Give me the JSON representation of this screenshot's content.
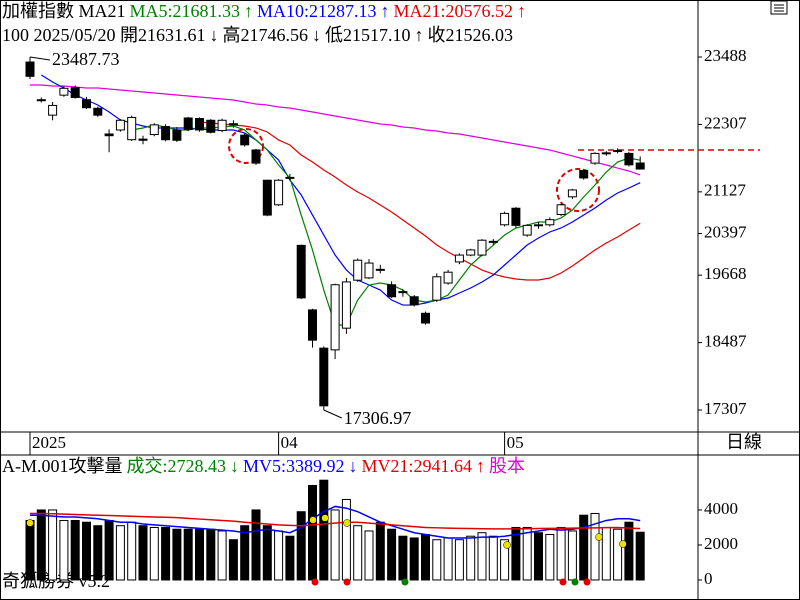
{
  "header": {
    "line1": [
      {
        "text": "加權指數 MA21",
        "color": "#000000"
      },
      {
        "text": "MA5:21681.33",
        "color": "#008000"
      },
      {
        "text": "↑",
        "color": "#008000"
      },
      {
        "text": "MA10:21287.13",
        "color": "#0000ff"
      },
      {
        "text": "↑",
        "color": "#0000ff"
      },
      {
        "text": "MA21:20576.52",
        "color": "#e00000"
      },
      {
        "text": "↑",
        "color": "#e00000"
      }
    ],
    "line2": [
      "100 2025/05/20 開21631.61",
      "↓",
      "高21746.56",
      "↓",
      "低21517.10",
      "↑",
      "收21526.03"
    ],
    "period": "日線",
    "footer": "奇狐勝券 v5.2"
  },
  "chart_data": [
    {
      "type": "candlestick",
      "categories": [
        "2025",
        null,
        null,
        null,
        null,
        null,
        null,
        null,
        null,
        null,
        null,
        null,
        null,
        null,
        null,
        null,
        null,
        null,
        null,
        null,
        null,
        null,
        "04",
        null,
        null,
        null,
        null,
        null,
        null,
        null,
        null,
        null,
        null,
        null,
        null,
        null,
        null,
        null,
        null,
        null,
        null,
        null,
        "05",
        null,
        null,
        null,
        null,
        null,
        null,
        null,
        null,
        null,
        null,
        null,
        null
      ],
      "open": [
        23400,
        22740,
        22470,
        22820,
        22950,
        22740,
        22590,
        22140,
        22210,
        22040,
        22050,
        22130,
        22270,
        22210,
        22420,
        22410,
        22380,
        22200,
        22320,
        22120,
        21860,
        21330,
        20900,
        21380,
        20190,
        19060,
        18390,
        18360,
        18740,
        19580,
        19620,
        19770,
        19500,
        19380,
        19290,
        19000,
        19230,
        19530,
        19900,
        20020,
        20020,
        20250,
        20550,
        20840,
        20370,
        20550,
        20550,
        20730,
        21040,
        21500,
        21630,
        21800,
        21840,
        21800,
        21631.61
      ],
      "high": [
        23487.73,
        22780,
        22700,
        22980,
        22990,
        22790,
        22620,
        22220,
        22400,
        22460,
        22110,
        22330,
        22310,
        22260,
        22440,
        22430,
        22400,
        22410,
        22380,
        22150,
        21880,
        21340,
        21350,
        21440,
        20200,
        19080,
        18420,
        19520,
        19620,
        19960,
        19950,
        19850,
        19560,
        19420,
        19320,
        19030,
        19700,
        19760,
        20050,
        20130,
        20300,
        20300,
        20780,
        20860,
        20560,
        20600,
        20680,
        20920,
        21180,
        21520,
        21820,
        21840,
        21890,
        21830,
        21746.56
      ],
      "low": [
        23100,
        22690,
        22380,
        22790,
        22760,
        22580,
        22440,
        21820,
        22180,
        22020,
        21960,
        22100,
        22010,
        22000,
        22190,
        22180,
        22150,
        22170,
        22250,
        21920,
        21600,
        20700,
        20880,
        21330,
        19250,
        18400,
        17306.97,
        18200,
        18640,
        19550,
        19600,
        19700,
        19270,
        19290,
        19120,
        18800,
        19200,
        19500,
        19860,
        20000,
        20000,
        20200,
        20520,
        20500,
        20340,
        20480,
        20520,
        20700,
        21000,
        21340,
        21600,
        21760,
        21800,
        21570,
        21517.1
      ],
      "close": [
        23150,
        22735,
        22640,
        22940,
        22780,
        22600,
        22470,
        22110,
        22380,
        22430,
        22030,
        22300,
        22040,
        22030,
        22220,
        22210,
        22170,
        22380,
        22300,
        21950,
        21630,
        20720,
        21330,
        21370,
        19270,
        18530,
        17380,
        19500,
        19550,
        19930,
        19880,
        19760,
        19290,
        19370,
        19150,
        18830,
        19640,
        19720,
        20020,
        20110,
        20280,
        20260,
        20750,
        20540,
        20540,
        20540,
        20640,
        20900,
        21160,
        21370,
        21800,
        21810,
        21850,
        21600,
        21526.03
      ],
      "up_color": "#ffffff",
      "down_color": "#000000",
      "series": [
        {
          "color": "#008000",
          "values": [
            null,
            null,
            null,
            null,
            null,
            null,
            null,
            null,
            null,
            22210,
            22245,
            22297,
            22262,
            22210,
            22210,
            22245,
            22245,
            22262,
            22280,
            22210,
            22035,
            21860,
            21597,
            21369,
            20721,
            20109,
            19408,
            18795,
            18795,
            19233,
            19496,
            19531,
            19496,
            19408,
            19233,
            19198,
            19233,
            19321,
            19583,
            19846,
            20021,
            20196,
            20371,
            20494,
            20546,
            20599,
            20599,
            20669,
            20809,
            21037,
            21247,
            21474,
            21649,
            21719,
            21681.33
          ]
        },
        {
          "color": "#0000ff",
          "values": [
            null,
            23173,
            23050,
            22945,
            22823,
            22735,
            22648,
            22525,
            22385,
            22332,
            22280,
            22245,
            22245,
            22245,
            22245,
            22227,
            22210,
            22210,
            22210,
            22157,
            22035,
            21860,
            21684,
            21334,
            21072,
            20721,
            20371,
            20021,
            19758,
            19583,
            19496,
            19408,
            19233,
            19145,
            19145,
            19180,
            19233,
            19268,
            19356,
            19443,
            19548,
            19671,
            19846,
            20021,
            20196,
            20319,
            20424,
            20494,
            20599,
            20721,
            20844,
            20984,
            21107,
            21194,
            21287.13
          ]
        },
        {
          "color": "#e00000",
          "values": [
            null,
            null,
            null,
            null,
            null,
            null,
            null,
            null,
            null,
            null,
            null,
            null,
            null,
            null,
            null,
            22350,
            22332,
            22315,
            22297,
            22280,
            22245,
            22175,
            22035,
            21947,
            21772,
            21649,
            21509,
            21387,
            21247,
            21124,
            21019,
            20897,
            20774,
            20634,
            20494,
            20354,
            20196,
            20074,
            19968,
            19863,
            19758,
            19688,
            19636,
            19601,
            19583,
            19583,
            19618,
            19706,
            19828,
            19968,
            20109,
            20231,
            20336,
            20459,
            20576.52
          ]
        },
        {
          "color": "#e000e0",
          "values": [
            22998,
            22998,
            22980,
            22980,
            22963,
            22945,
            22945,
            22928,
            22910,
            22893,
            22875,
            22858,
            22840,
            22823,
            22805,
            22788,
            22770,
            22753,
            22735,
            22700,
            22665,
            22648,
            22612,
            22595,
            22560,
            22525,
            22490,
            22455,
            22420,
            22385,
            22350,
            22315,
            22297,
            22262,
            22245,
            22210,
            22192,
            22157,
            22140,
            22105,
            22070,
            22035,
            22000,
            21965,
            21930,
            21895,
            21860,
            21807,
            21755,
            21702,
            21649,
            21597,
            21544,
            21492,
            21422
          ]
        }
      ],
      "high_label": "23487.73",
      "low_label": "17306.97",
      "reference_line": 21860,
      "reference_color": "#e00000",
      "ylim": [
        16922,
        24486
      ],
      "yticks": [
        23488,
        22307,
        21127,
        20397,
        19668,
        18487,
        17307
      ]
    },
    {
      "type": "bar",
      "legend": [
        {
          "text": "A-M.001攻擊量",
          "color": "#000000"
        },
        {
          "text": "成交:2728.43",
          "color": "#008000"
        },
        {
          "text": "↓",
          "color": "#008000"
        },
        {
          "text": "MV5:3389.92",
          "color": "#0000ff"
        },
        {
          "text": "↓",
          "color": "#0000ff"
        },
        {
          "text": "MV21:2941.64",
          "color": "#e00000"
        },
        {
          "text": "↑",
          "color": "#e00000"
        },
        {
          "text": "股本",
          "color": "#e000e0"
        }
      ],
      "values": [
        3400,
        4000,
        4000,
        3400,
        3400,
        3300,
        3100,
        3400,
        3100,
        3300,
        3100,
        3000,
        3000,
        2900,
        2900,
        2900,
        2900,
        2800,
        2300,
        3100,
        4000,
        3100,
        2800,
        2500,
        3900,
        5400,
        5700,
        4000,
        4600,
        3100,
        2800,
        3300,
        2900,
        2500,
        2400,
        2600,
        2300,
        2400,
        2300,
        2500,
        2700,
        2500,
        2300,
        3000,
        3000,
        2700,
        2600,
        3000,
        2800,
        3700,
        3800,
        3000,
        2900,
        3300,
        2728.43
      ],
      "series": [
        {
          "color": "#0000ff",
          "values": [
            3700,
            3700,
            3650,
            3600,
            3600,
            3550,
            3500,
            3400,
            3300,
            3300,
            3200,
            3150,
            3100,
            3050,
            3000,
            2950,
            2900,
            2850,
            2800,
            2700,
            2800,
            2900,
            2800,
            2700,
            3000,
            3500,
            3900,
            4200,
            4100,
            3900,
            3600,
            3300,
            3100,
            2900,
            2700,
            2600,
            2500,
            2400,
            2400,
            2400,
            2450,
            2450,
            2500,
            2600,
            2700,
            2800,
            2900,
            2850,
            2900,
            3000,
            3200,
            3400,
            3500,
            3500,
            3389.92
          ]
        },
        {
          "color": "#e00000",
          "values": [
            3800,
            3800,
            3780,
            3760,
            3740,
            3720,
            3700,
            3680,
            3660,
            3640,
            3620,
            3600,
            3580,
            3560,
            3520,
            3480,
            3440,
            3400,
            3360,
            3300,
            3250,
            3200,
            3150,
            3120,
            3100,
            3150,
            3200,
            3250,
            3300,
            3300,
            3250,
            3200,
            3150,
            3100,
            3050,
            3000,
            2980,
            2960,
            2950,
            2940,
            2930,
            2920,
            2920,
            2920,
            2930,
            2940,
            2950,
            2950,
            2960,
            2970,
            2980,
            2990,
            3000,
            2960,
            2941.64
          ]
        }
      ],
      "ylim": [
        -1030,
        7140
      ],
      "yticks": [
        4000,
        2000,
        0
      ]
    }
  ]
}
